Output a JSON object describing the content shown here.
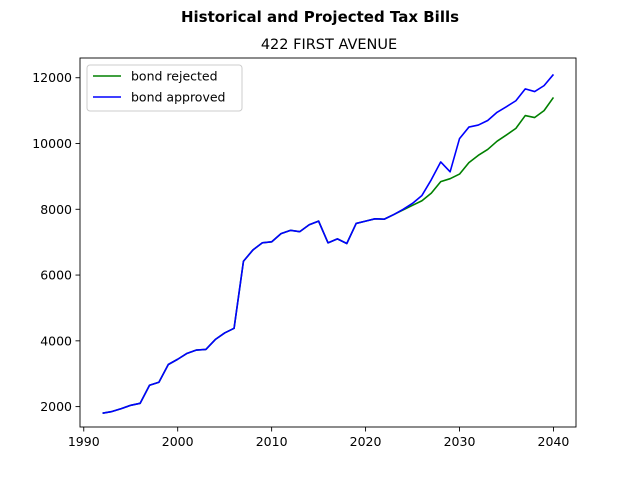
{
  "chart_data": {
    "type": "line",
    "suptitle": "Historical and Projected Tax Bills",
    "title": "422 FIRST AVENUE",
    "xlabel": "",
    "ylabel": "",
    "xlim": [
      1989.6,
      2042.4
    ],
    "ylim": [
      1380,
      12600
    ],
    "xticks": [
      1990,
      2000,
      2010,
      2020,
      2030,
      2040
    ],
    "yticks": [
      2000,
      4000,
      6000,
      8000,
      10000,
      12000
    ],
    "grid": false,
    "legend": {
      "placement": "top-left",
      "entries": [
        "bond rejected",
        "bond approved"
      ]
    },
    "x": [
      1992,
      1993,
      1994,
      1995,
      1996,
      1997,
      1998,
      1999,
      2000,
      2001,
      2002,
      2003,
      2004,
      2005,
      2006,
      2007,
      2008,
      2009,
      2010,
      2011,
      2012,
      2013,
      2014,
      2015,
      2016,
      2017,
      2018,
      2019,
      2020,
      2021,
      2022,
      2023,
      2024,
      2025,
      2026,
      2027,
      2028,
      2029,
      2030,
      2031,
      2032,
      2033,
      2034,
      2035,
      2036,
      2037,
      2038,
      2039,
      2040
    ],
    "series": [
      {
        "name": "bond rejected",
        "color": "#008000",
        "values": [
          1800,
          1850,
          1940,
          2040,
          2100,
          2650,
          2740,
          3280,
          3440,
          3620,
          3720,
          3740,
          4040,
          4240,
          4380,
          6420,
          6760,
          6980,
          7010,
          7260,
          7360,
          7320,
          7530,
          7640,
          6980,
          7100,
          6960,
          7570,
          7640,
          7710,
          7700,
          7840,
          7980,
          8120,
          8260,
          8490,
          8840,
          8930,
          9070,
          9420,
          9640,
          9820,
          10070,
          10260,
          10460,
          10850,
          10790,
          11000,
          11400
        ]
      },
      {
        "name": "bond approved",
        "color": "#0000ff",
        "values": [
          1800,
          1850,
          1940,
          2040,
          2100,
          2650,
          2740,
          3280,
          3440,
          3620,
          3720,
          3740,
          4040,
          4240,
          4380,
          6420,
          6760,
          6980,
          7010,
          7260,
          7360,
          7320,
          7530,
          7640,
          6980,
          7100,
          6960,
          7570,
          7640,
          7710,
          7700,
          7840,
          8000,
          8180,
          8420,
          8900,
          9440,
          9140,
          10150,
          10500,
          10560,
          10700,
          10950,
          11120,
          11300,
          11660,
          11580,
          11760,
          12100
        ]
      }
    ]
  }
}
